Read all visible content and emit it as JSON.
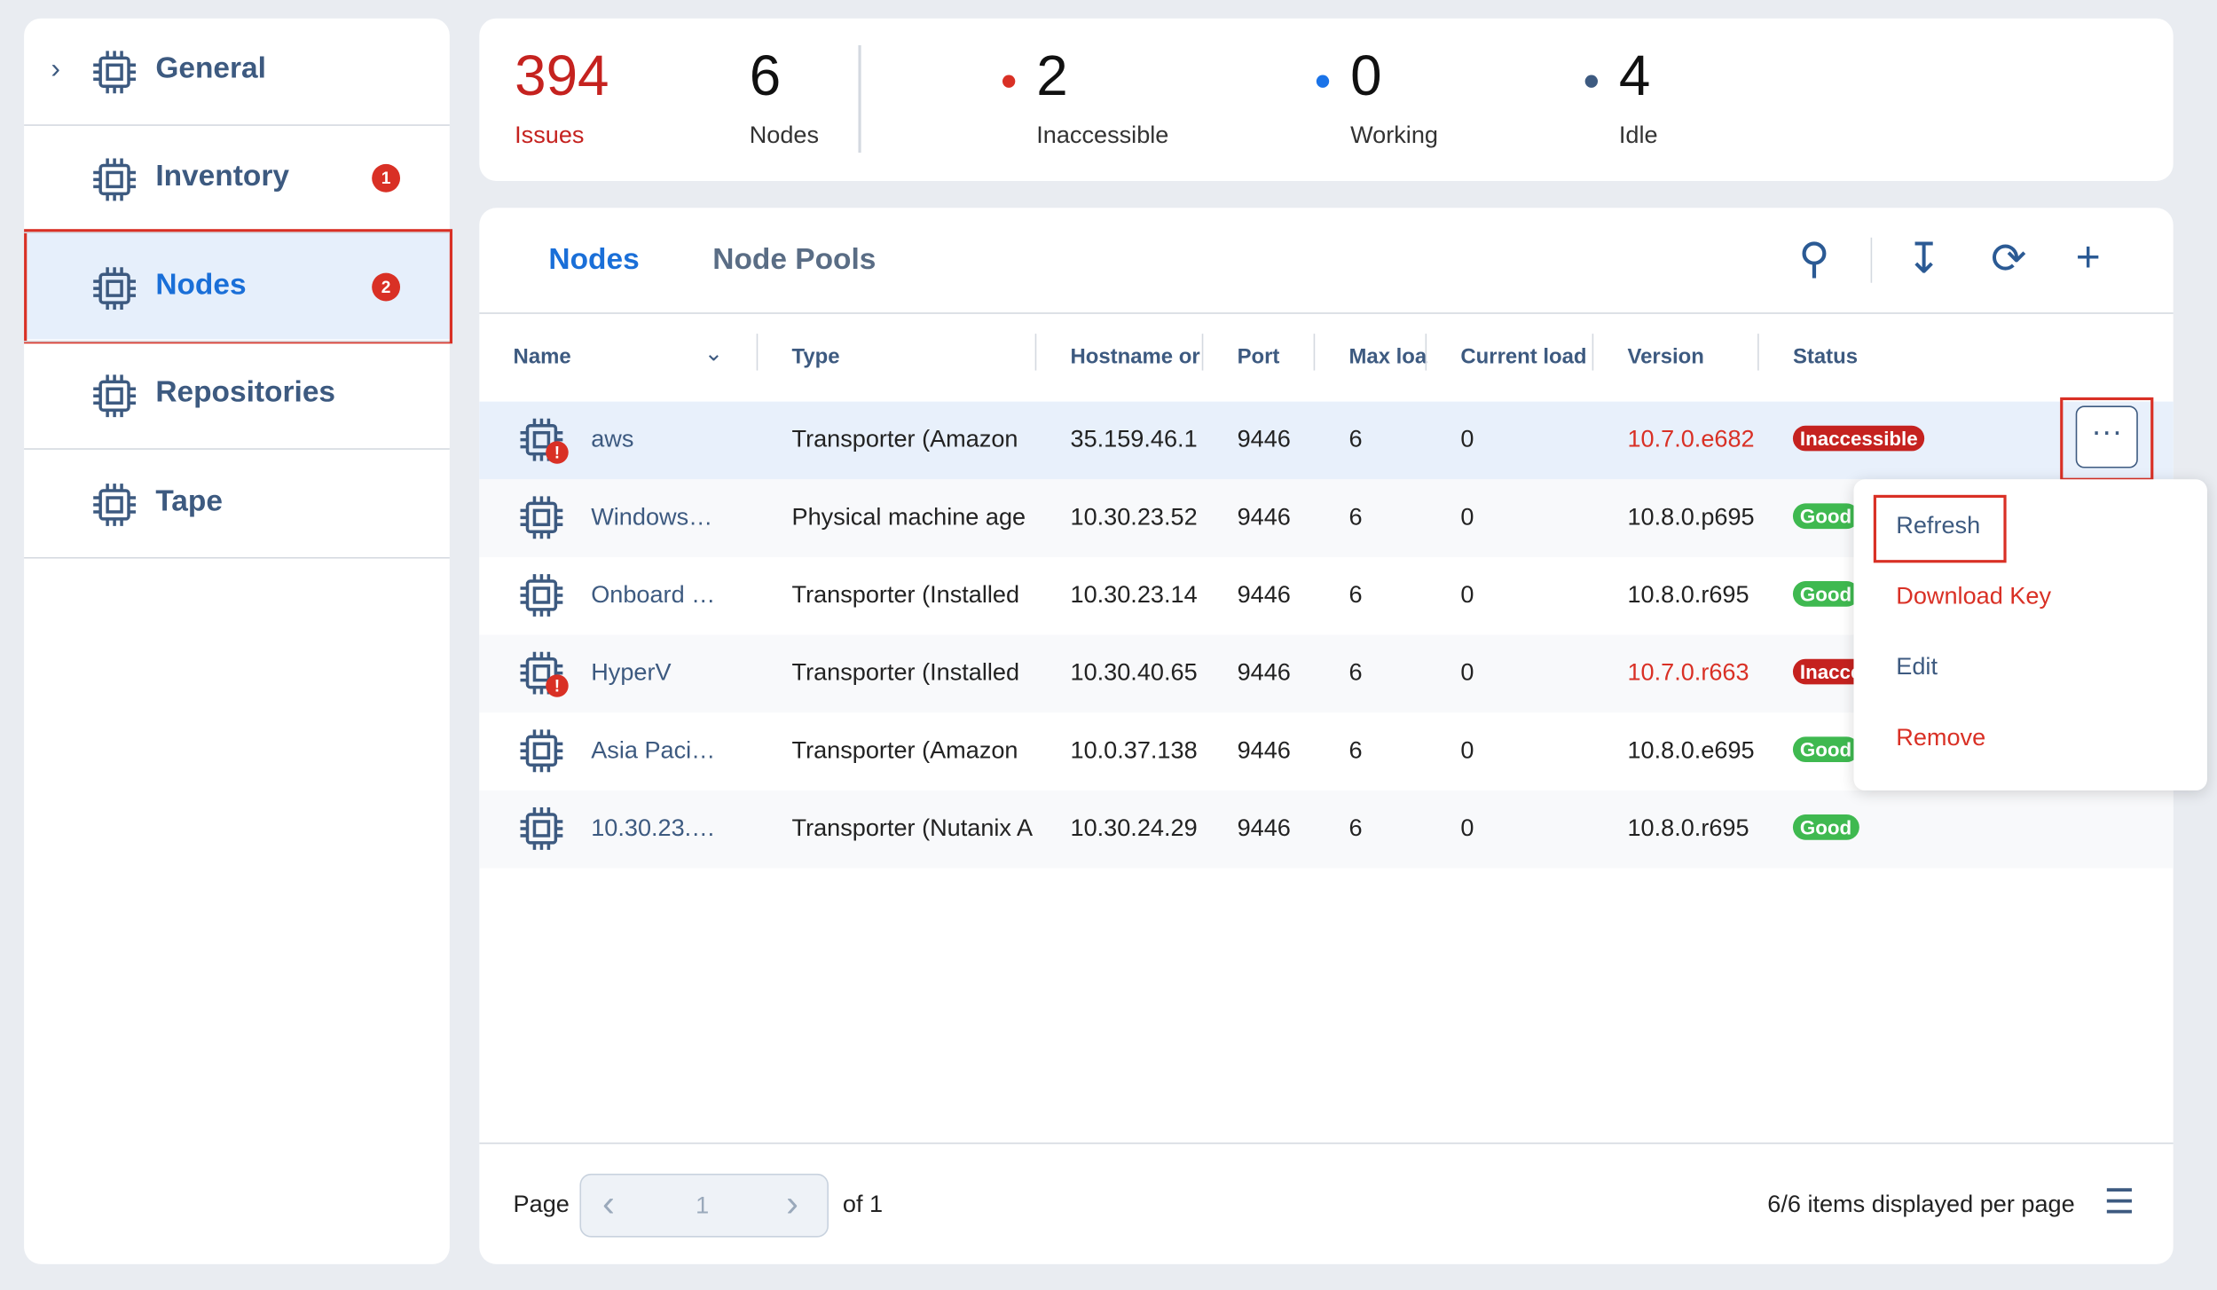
{
  "sidebar": {
    "items": [
      {
        "label": "General"
      },
      {
        "label": "Inventory",
        "badge": "1"
      },
      {
        "label": "Nodes",
        "badge": "2"
      },
      {
        "label": "Repositories"
      },
      {
        "label": "Tape"
      }
    ]
  },
  "stats": {
    "issues": {
      "value": 394,
      "label": "Issues"
    },
    "nodes": {
      "value": 6,
      "label": "Nodes"
    },
    "inaccessible": {
      "value": 2,
      "label": "Inaccessible"
    },
    "working": {
      "value": 0,
      "label": "Working"
    },
    "idle": {
      "value": 4,
      "label": "Idle"
    }
  },
  "tabs": [
    "Nodes",
    "Node Pools"
  ],
  "table": {
    "columns": [
      "Name",
      "Type",
      "Hostname or",
      "Port",
      "Max loa",
      "Current load",
      "Version",
      "Status"
    ],
    "rows": [
      [
        "aws",
        "Transporter (Amazon",
        "35.159.46.1",
        "9446",
        "6",
        "0",
        "10.7.0.e682",
        "Inaccessible"
      ],
      [
        "Windows…",
        "Physical machine age",
        "10.30.23.52",
        "9446",
        "6",
        "0",
        "10.8.0.p695",
        "Good"
      ],
      [
        "Onboard …",
        "Transporter (Installed",
        "10.30.23.14",
        "9446",
        "6",
        "0",
        "10.8.0.r695",
        "Good"
      ],
      [
        "HyperV",
        "Transporter (Installed",
        "10.30.40.65",
        "9446",
        "6",
        "0",
        "10.7.0.r663",
        "Inaccessible"
      ],
      [
        "Asia Paci…",
        "Transporter (Amazon",
        "10.0.37.138",
        "9446",
        "6",
        "0",
        "10.8.0.e695",
        "Good"
      ],
      [
        "10.30.23.…",
        "Transporter (Nutanix A",
        "10.30.24.29",
        "9446",
        "6",
        "0",
        "10.8.0.r695",
        "Good"
      ]
    ]
  },
  "menu": [
    "Refresh",
    "Download Key",
    "Edit",
    "Remove"
  ],
  "footer": {
    "page_label": "Page",
    "page": "1",
    "of": "of 1",
    "items": "6/6 items displayed per page"
  }
}
